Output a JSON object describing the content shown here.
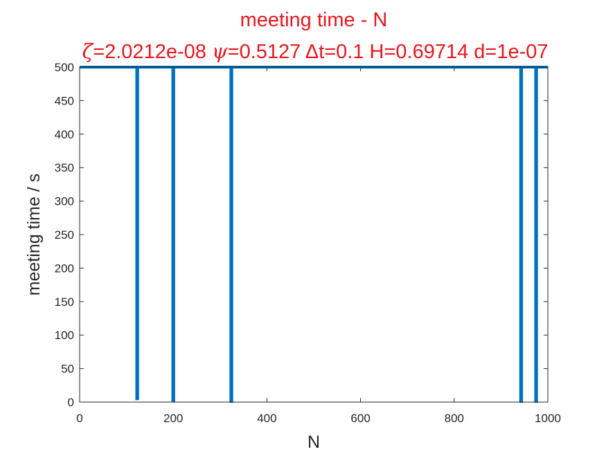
{
  "chart_data": {
    "type": "line",
    "title": "meeting time - N",
    "subtitle": {
      "zeta_symbol": "ζ",
      "zeta_value": "=2.0212e-08 ",
      "psi_symbol": "ψ",
      "psi_value": "=0.5127 ",
      "delta_symbol": "Δ",
      "delta_value": "t=0.1 H=0.69714 d=1e-07"
    },
    "xlabel": "N",
    "ylabel": "meeting time / s",
    "xlim": [
      0,
      1000
    ],
    "ylim": [
      0,
      500
    ],
    "xticks": [
      0,
      200,
      400,
      600,
      800,
      1000
    ],
    "yticks": [
      0,
      50,
      100,
      150,
      200,
      250,
      300,
      350,
      400,
      450,
      500
    ],
    "series": [
      {
        "color": "#0072bd",
        "x": [
          0,
          122,
          122,
          124,
          124,
          199,
          199,
          201,
          201,
          323,
          323,
          325,
          325,
          942,
          942,
          944,
          944,
          974,
          974,
          976,
          976,
          1000
        ],
        "y": [
          500,
          500,
          5,
          5,
          500,
          500,
          2,
          2,
          500,
          500,
          1,
          1,
          500,
          500,
          1,
          1,
          500,
          500,
          1,
          1,
          500,
          500
        ]
      }
    ],
    "grid": false,
    "title_color": "#e8171f"
  }
}
